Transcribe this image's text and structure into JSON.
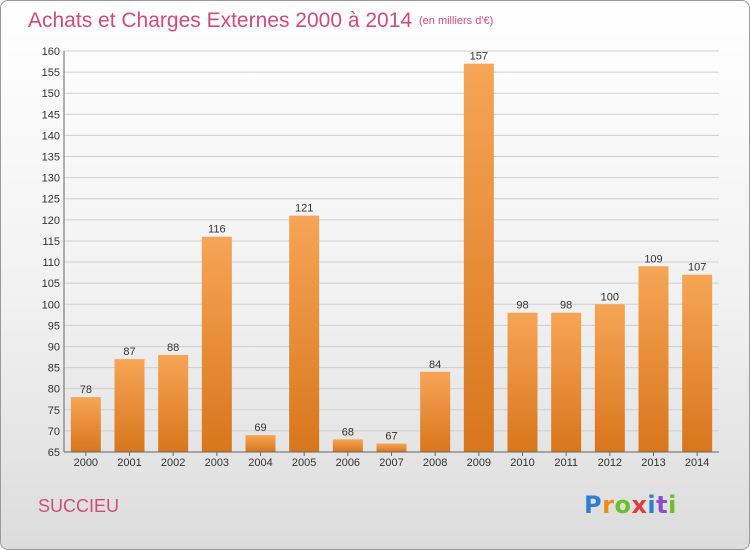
{
  "header": {
    "title": "Achats et Charges Externes 2000 à 2014",
    "subtitle": "(en milliers d'€)"
  },
  "footer": {
    "commune": "SUCCIEU",
    "logo": "Proxiti"
  },
  "colors": {
    "bar_top": "#f6a556",
    "bar_bottom": "#d8761c",
    "title": "#d14b7a",
    "grid": "#cfcfcf"
  },
  "chart_data": {
    "type": "bar",
    "categories": [
      "2000",
      "2001",
      "2002",
      "2003",
      "2004",
      "2005",
      "2006",
      "2007",
      "2008",
      "2009",
      "2010",
      "2011",
      "2012",
      "2013",
      "2014"
    ],
    "values": [
      78,
      87,
      88,
      116,
      69,
      121,
      68,
      67,
      84,
      157,
      98,
      98,
      100,
      109,
      107
    ],
    "ylim": [
      65,
      160
    ],
    "yticks": [
      65,
      70,
      75,
      80,
      85,
      90,
      95,
      100,
      105,
      110,
      115,
      120,
      125,
      130,
      135,
      140,
      145,
      150,
      155,
      160
    ],
    "grid": true,
    "xlabel": "",
    "ylabel": ""
  }
}
